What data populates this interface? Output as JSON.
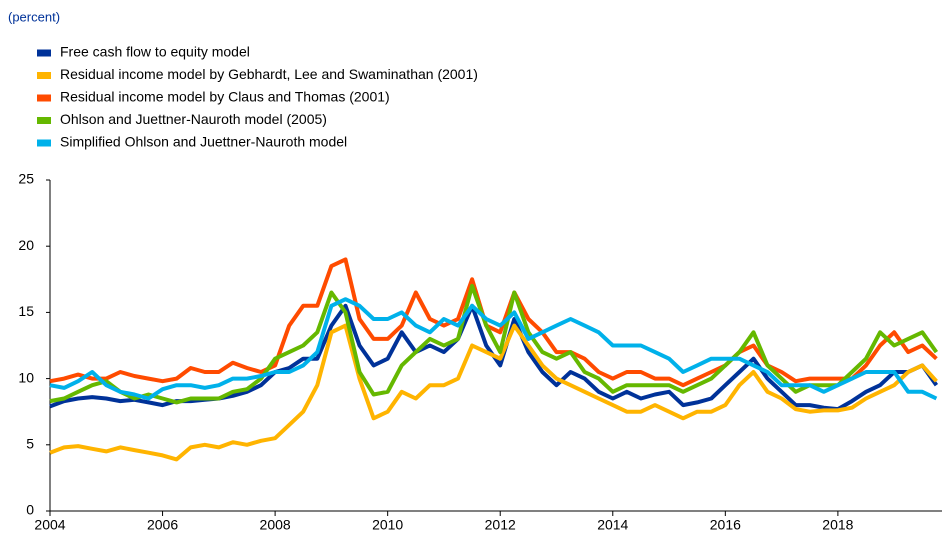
{
  "chart_data": {
    "type": "line",
    "unit_note": "(percent)",
    "x": [
      2004,
      2004.25,
      2004.5,
      2004.75,
      2005,
      2005.25,
      2005.5,
      2005.75,
      2006,
      2006.25,
      2006.5,
      2006.75,
      2007,
      2007.25,
      2007.5,
      2007.75,
      2008,
      2008.25,
      2008.5,
      2008.75,
      2009,
      2009.25,
      2009.5,
      2009.75,
      2010,
      2010.25,
      2010.5,
      2010.75,
      2011,
      2011.25,
      2011.5,
      2011.75,
      2012,
      2012.25,
      2012.5,
      2012.75,
      2013,
      2013.25,
      2013.5,
      2013.75,
      2014,
      2014.25,
      2014.5,
      2014.75,
      2015,
      2015.25,
      2015.5,
      2015.75,
      2016,
      2016.25,
      2016.5,
      2016.75,
      2017,
      2017.25,
      2017.5,
      2017.75,
      2018,
      2018.25,
      2018.5,
      2018.75,
      2019,
      2019.25,
      2019.5,
      2019.75
    ],
    "series": [
      {
        "name": "Free cash flow to equity model",
        "color": "#003299",
        "values": [
          7.9,
          8.3,
          8.5,
          8.6,
          8.5,
          8.3,
          8.4,
          8.2,
          8.0,
          8.3,
          8.3,
          8.4,
          8.5,
          8.7,
          9.0,
          9.5,
          10.5,
          10.8,
          11.5,
          11.5,
          14.0,
          15.5,
          12.5,
          11.0,
          11.5,
          13.5,
          12.0,
          12.5,
          12.0,
          13.0,
          15.5,
          12.5,
          11.0,
          14.5,
          12.0,
          10.5,
          9.5,
          10.5,
          10.0,
          9.0,
          8.5,
          9.0,
          8.5,
          8.8,
          9.0,
          8.0,
          8.2,
          8.5,
          9.5,
          10.5,
          11.5,
          10.0,
          9.0,
          8.0,
          8.0,
          7.8,
          7.7,
          8.3,
          9.0,
          9.5,
          10.5,
          10.5,
          11.0,
          9.5
        ]
      },
      {
        "name": "Residual income model by Gebhardt, Lee and Swaminathan (2001)",
        "color": "#ffb400",
        "values": [
          4.4,
          4.8,
          4.9,
          4.7,
          4.5,
          4.8,
          4.6,
          4.4,
          4.2,
          3.9,
          4.8,
          5.0,
          4.8,
          5.2,
          5.0,
          5.3,
          5.5,
          6.5,
          7.5,
          9.5,
          13.5,
          14.0,
          10.0,
          7.0,
          7.5,
          9.0,
          8.5,
          9.5,
          9.5,
          10.0,
          12.5,
          12.0,
          11.5,
          14.0,
          12.5,
          11.0,
          10.0,
          9.5,
          9.0,
          8.5,
          8.0,
          7.5,
          7.5,
          8.0,
          7.5,
          7.0,
          7.5,
          7.5,
          8.0,
          9.5,
          10.5,
          9.0,
          8.5,
          7.7,
          7.5,
          7.6,
          7.6,
          7.8,
          8.5,
          9.0,
          9.5,
          10.5,
          11.0,
          9.8
        ]
      },
      {
        "name": "Residual income model by Claus and Thomas (2001)",
        "color": "#ff4b00",
        "values": [
          9.8,
          10.0,
          10.3,
          10.0,
          10.0,
          10.5,
          10.2,
          10.0,
          9.8,
          10.0,
          10.8,
          10.5,
          10.5,
          11.2,
          10.8,
          10.5,
          11.0,
          14.0,
          15.5,
          15.5,
          18.5,
          19.0,
          14.5,
          13.0,
          13.0,
          14.0,
          16.5,
          14.5,
          14.0,
          14.5,
          17.5,
          14.0,
          13.5,
          16.5,
          14.5,
          13.5,
          12.0,
          12.0,
          11.5,
          10.5,
          10.0,
          10.5,
          10.5,
          10.0,
          10.0,
          9.5,
          10.0,
          10.5,
          11.0,
          12.0,
          12.5,
          11.0,
          10.5,
          9.8,
          10.0,
          10.0,
          10.0,
          10.0,
          11.0,
          12.5,
          13.5,
          12.0,
          12.5,
          11.5
        ]
      },
      {
        "name": "Ohlson and Juettner-Nauroth model (2005)",
        "color": "#65b800",
        "values": [
          8.3,
          8.5,
          9.0,
          9.5,
          9.8,
          9.0,
          8.5,
          8.8,
          8.5,
          8.2,
          8.5,
          8.5,
          8.5,
          9.0,
          9.2,
          10.0,
          11.5,
          12.0,
          12.5,
          13.5,
          16.5,
          15.0,
          10.5,
          8.8,
          9.0,
          11.0,
          12.0,
          13.0,
          12.5,
          13.0,
          17.0,
          14.0,
          12.0,
          16.5,
          13.5,
          12.0,
          11.5,
          12.0,
          10.5,
          10.0,
          9.0,
          9.5,
          9.5,
          9.5,
          9.5,
          9.0,
          9.5,
          10.0,
          11.0,
          12.0,
          13.5,
          11.0,
          10.0,
          9.0,
          9.5,
          9.5,
          9.5,
          10.5,
          11.5,
          13.5,
          12.5,
          13.0,
          13.5,
          12.0
        ]
      },
      {
        "name": "Simplified Ohlson and Juettner-Nauroth model",
        "color": "#00b1ea",
        "values": [
          9.5,
          9.3,
          9.8,
          10.5,
          9.5,
          9.0,
          8.8,
          8.5,
          9.2,
          9.5,
          9.5,
          9.3,
          9.5,
          10.0,
          10.0,
          10.2,
          10.5,
          10.5,
          11.0,
          12.0,
          15.5,
          16.0,
          15.5,
          14.5,
          14.5,
          15.0,
          14.0,
          13.5,
          14.5,
          14.0,
          15.5,
          14.5,
          14.0,
          15.0,
          13.0,
          13.5,
          14.0,
          14.5,
          14.0,
          13.5,
          12.5,
          12.5,
          12.5,
          12.0,
          11.5,
          10.5,
          11.0,
          11.5,
          11.5,
          11.5,
          11.0,
          10.5,
          9.5,
          9.5,
          9.5,
          9.0,
          9.5,
          10.0,
          10.5,
          10.5,
          10.5,
          9.0,
          9.0,
          8.5
        ]
      }
    ],
    "xlim": [
      2004,
      2019.85
    ],
    "xticks": [
      2004,
      2006,
      2008,
      2010,
      2012,
      2014,
      2016,
      2018
    ],
    "ylim": [
      0,
      25
    ],
    "yticks": [
      0,
      5,
      10,
      15,
      20,
      25
    ]
  }
}
